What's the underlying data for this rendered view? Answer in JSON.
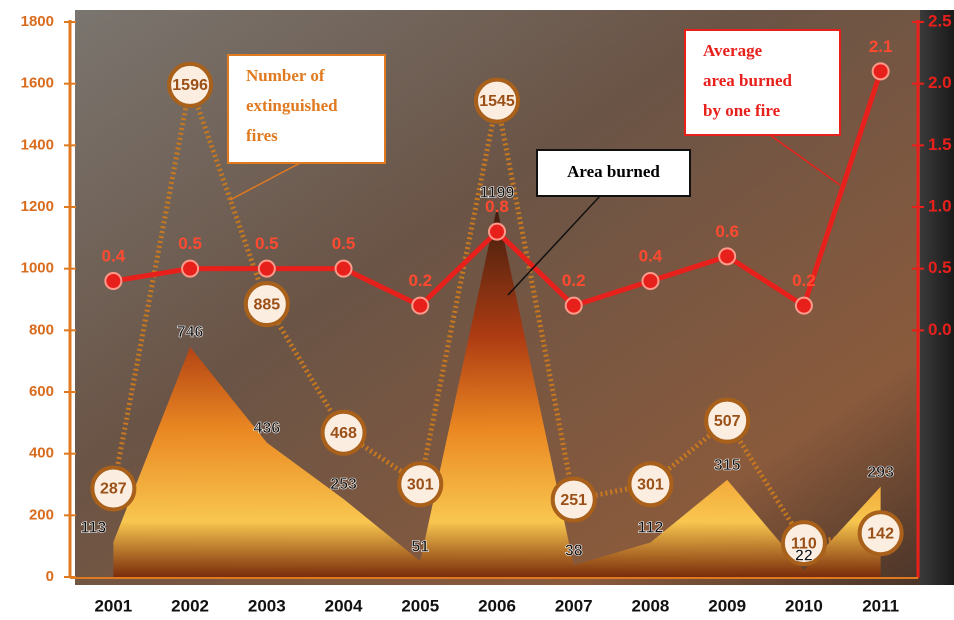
{
  "chart_data": {
    "type": "combo",
    "categories": [
      "2001",
      "2002",
      "2003",
      "2004",
      "2005",
      "2006",
      "2007",
      "2008",
      "2009",
      "2010",
      "2011"
    ],
    "series": [
      {
        "name": "Number of extinguished fires",
        "color": "#c8781e",
        "kind": "dotted-circles",
        "values": [
          287,
          1596,
          885,
          468,
          301,
          1545,
          251,
          301,
          507,
          110,
          142
        ]
      },
      {
        "name": "Area burned",
        "color": "#e0601a",
        "kind": "area",
        "values": [
          113,
          746,
          436,
          253,
          51,
          1199,
          38,
          112,
          315,
          22,
          293
        ]
      },
      {
        "name": "Average area burned by one fire",
        "color": "#e8201c",
        "kind": "line",
        "axis": "y2",
        "values": [
          0.4,
          0.5,
          0.5,
          0.5,
          0.2,
          0.8,
          0.2,
          0.4,
          0.6,
          0.2,
          2.1
        ]
      }
    ],
    "ylim": [
      0,
      1800
    ],
    "yticks": [
      0,
      200,
      400,
      600,
      800,
      1000,
      1200,
      1400,
      1600,
      1800
    ],
    "y2lim": [
      -2,
      2.5
    ],
    "y2ticks": [
      {
        "value": 0,
        "label": "0.0"
      },
      {
        "value": 0.5,
        "label": "0.5"
      },
      {
        "value": 1,
        "label": "1.0"
      },
      {
        "value": 1.5,
        "label": "1.5"
      },
      {
        "value": 2,
        "label": "2.0"
      },
      2.5
    ]
  }
}
